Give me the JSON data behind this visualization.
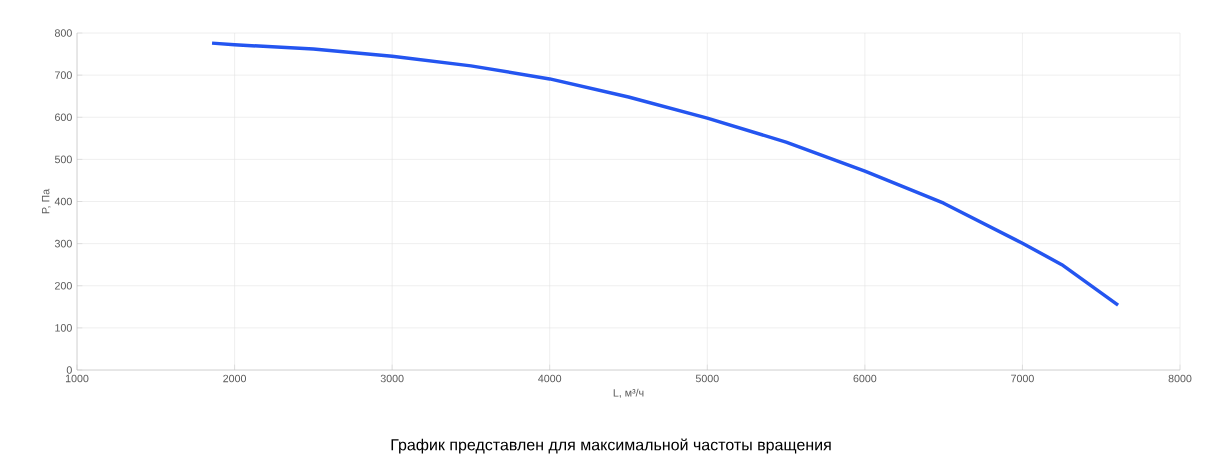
{
  "chart_data": {
    "type": "line",
    "xlabel": "L, м³/ч",
    "ylabel": "P, Па",
    "annotations": [
      "График представлен для максимальной частоты вращения"
    ],
    "x": [
      1857,
      2000,
      2500,
      3000,
      3500,
      4000,
      4500,
      5000,
      5500,
      6000,
      6500,
      7000,
      7250,
      7607
    ],
    "series": [
      {
        "color": "#2455f0",
        "values": [
          776,
          772,
          762,
          745,
          722,
          691,
          648,
          598,
          541,
          472,
          396,
          301,
          250,
          154
        ]
      }
    ],
    "xlim": [
      1000,
      8000
    ],
    "xticks": [
      1000,
      2000,
      3000,
      4000,
      5000,
      6000,
      7000,
      8000
    ],
    "ylim": [
      0,
      800
    ],
    "yticks": [
      0,
      100,
      200,
      300,
      400,
      500,
      600,
      700,
      800
    ],
    "grid": true,
    "marker": "none",
    "line_style": "solid"
  }
}
